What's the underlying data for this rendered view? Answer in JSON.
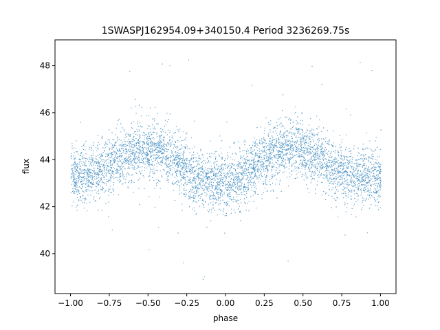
{
  "chart_data": {
    "type": "scatter",
    "title": "1SWASPJ162954.09+340150.4 Period 3236269.75s",
    "xlabel": "phase",
    "ylabel": "flux",
    "xlim": [
      -1.1,
      1.1
    ],
    "ylim": [
      38.3,
      49.1
    ],
    "xticks": [
      -1.0,
      -0.75,
      -0.5,
      -0.25,
      0.0,
      0.25,
      0.5,
      0.75,
      1.0
    ],
    "xtick_labels": [
      "−1.00",
      "−0.75",
      "−0.50",
      "−0.25",
      "0.00",
      "0.25",
      "0.50",
      "0.75",
      "1.00"
    ],
    "yticks": [
      40,
      42,
      44,
      46,
      48
    ],
    "ytick_labels": [
      "40",
      "42",
      "44",
      "46",
      "48"
    ],
    "grid": false,
    "color": "#1f77b4",
    "series": [
      {
        "phase_range": [
          -1.0,
          1.0
        ],
        "mean_curve": {
          "x": [
            -1.0,
            -0.9,
            -0.8,
            -0.7,
            -0.6,
            -0.5,
            -0.4,
            -0.3,
            -0.2,
            -0.1,
            0.0,
            0.1,
            0.2,
            0.3,
            0.4,
            0.5,
            0.6,
            0.7,
            0.8,
            0.9,
            1.0
          ],
          "y": [
            43.3,
            43.4,
            43.6,
            44.0,
            44.4,
            44.5,
            44.3,
            43.8,
            43.3,
            43.1,
            43.0,
            43.3,
            43.8,
            44.2,
            44.5,
            44.4,
            44.1,
            43.7,
            43.4,
            43.3,
            43.2
          ]
        },
        "core_spread": 2.4,
        "outlier_range": [
          38.9,
          48.6
        ]
      }
    ]
  }
}
